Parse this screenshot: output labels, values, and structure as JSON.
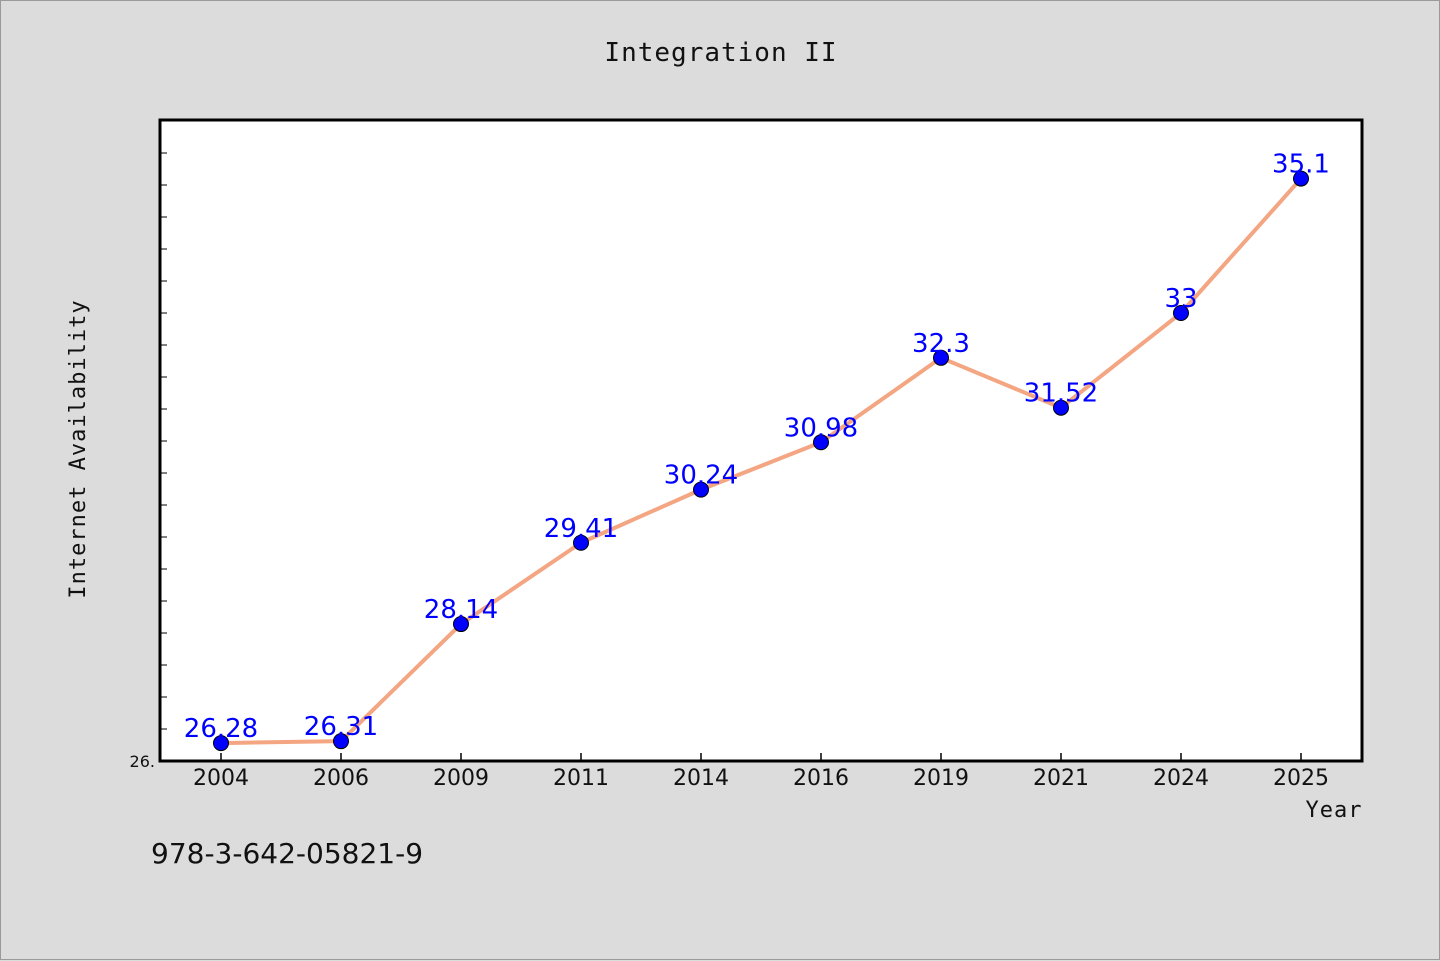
{
  "chart_data": {
    "type": "line",
    "title": "Integration II",
    "xlabel": "Year",
    "ylabel": "Internet Availability",
    "categories": [
      "2004",
      "2006",
      "2009",
      "2011",
      "2014",
      "2016",
      "2019",
      "2021",
      "2024",
      "2025"
    ],
    "series": [
      {
        "values": [
          26.28,
          26.31,
          28.14,
          29.41,
          30.24,
          30.98,
          32.3,
          31.52,
          33,
          35.1
        ],
        "data_labels": [
          "26.28",
          "26.31",
          "28.14",
          "29.41",
          "30.24",
          "30.98",
          "32.3",
          "31.52",
          "33",
          "35.1"
        ],
        "line_color": "#f4a582",
        "marker_color": "#0000ff"
      }
    ],
    "ylim": [
      26,
      36
    ],
    "y_min_label": "26.",
    "grid": false,
    "legend": "none"
  },
  "footer": {
    "code": "978-3-642-05821-9"
  }
}
